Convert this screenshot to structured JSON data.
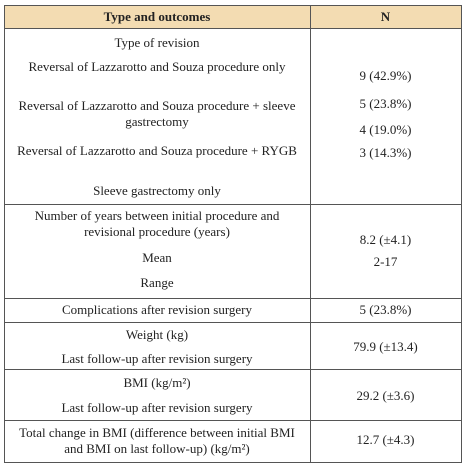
{
  "table": {
    "header": [
      "Type and outcomes",
      "N"
    ],
    "sections": [
      {
        "left": [
          "Type of revision",
          "Reversal of Lazzarotto and Souza procedure only",
          "Reversal of Lazzarotto and Souza procedure + sleeve gastrectomy",
          "Reversal of Lazzarotto and Souza procedure + RYGB",
          "Sleeve gastrectomy only"
        ],
        "right": [
          "9 (42.9%)",
          "5 (23.8%)",
          "4 (19.0%)",
          "3 (14.3%)"
        ]
      },
      {
        "left": [
          "Number of years between initial procedure and revisional procedure (years)",
          "Mean",
          "Range"
        ],
        "right": [
          "8.2 (±4.1)",
          "2-17"
        ]
      },
      {
        "left": [
          "Complications after revision surgery"
        ],
        "right": [
          "5 (23.8%)"
        ]
      },
      {
        "left": [
          "Weight (kg)",
          "Last follow-up after revision surgery"
        ],
        "right": [
          "79.9 (±13.4)"
        ]
      },
      {
        "left": [
          "BMI (kg/m²)",
          "Last follow-up after revision surgery"
        ],
        "right": [
          "29.2 (±3.6)"
        ]
      },
      {
        "left": [
          "Total change in BMI (difference between initial BMI and BMI on last follow-up) (kg/m²)"
        ],
        "right": [
          "12.7 (±4.3)"
        ]
      }
    ]
  }
}
